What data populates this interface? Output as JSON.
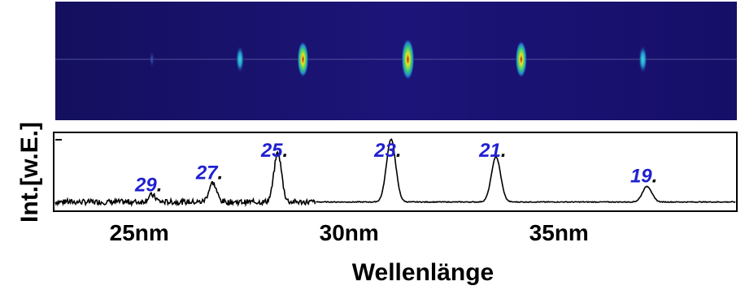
{
  "chart_data": {
    "type": "line",
    "title": "",
    "xlabel": "Wellenlänge",
    "ylabel": "Int.[w.E.]",
    "xunit": "nm",
    "xlim": [
      23.0,
      39.2
    ],
    "ylim": [
      0,
      1
    ],
    "x_ticks": [
      {
        "value": 25,
        "label": "25nm"
      },
      {
        "value": 30,
        "label": "30nm"
      },
      {
        "value": 35,
        "label": "35nm"
      }
    ],
    "grid": false,
    "legend": "none",
    "colors": {
      "detector_background": "#1a1070",
      "harmonic_label": "#2020d0",
      "trace": "#000000"
    },
    "detector_image": {
      "spots": [
        {
          "x": 25.3,
          "intensity": 0.1
        },
        {
          "x": 27.4,
          "intensity": 0.45
        },
        {
          "x": 28.9,
          "intensity": 0.78
        },
        {
          "x": 31.4,
          "intensity": 1.0
        },
        {
          "x": 34.1,
          "intensity": 0.82
        },
        {
          "x": 37.0,
          "intensity": 0.48
        }
      ]
    },
    "peaks": [
      {
        "label": "29",
        "suffix": ".",
        "x": 25.3,
        "y": 0.1
      },
      {
        "label": "27",
        "suffix": ".",
        "x": 26.75,
        "y": 0.28
      },
      {
        "label": "25",
        "suffix": ".",
        "x": 28.3,
        "y": 0.72
      },
      {
        "label": "23",
        "suffix": ".",
        "x": 31.0,
        "y": 0.92
      },
      {
        "label": "21",
        "suffix": ".",
        "x": 33.5,
        "y": 0.66
      },
      {
        "label": "19",
        "suffix": ".",
        "x": 37.1,
        "y": 0.23
      }
    ],
    "noise_level": 0.04,
    "noise_until_x": 29.2
  }
}
